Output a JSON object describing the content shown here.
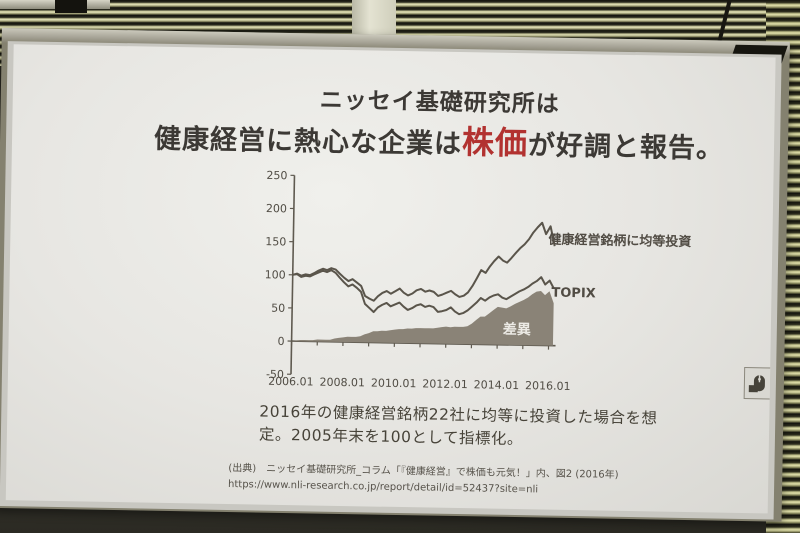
{
  "slide": {
    "title_line1": "ニッセイ基礎研究所は",
    "title_line2_prefix": "健康経営に熱心な企業は",
    "title_line2_highlight": "株価",
    "title_line2_suffix": "が好調と報告。",
    "highlight_color": "#b23230",
    "caption": "2016年の健康経営銘柄22社に均等に投資した場合を想定。2005年末を100として指標化。",
    "source_line1": "(出典)　ニッセイ基礎研究所_コラム「『健康経営』で株価も元気！」内、図2 (2016年)",
    "source_line2": "https://www.nli-research.co.jp/report/detail/id=52437?site=nli"
  },
  "chart_data": {
    "type": "line",
    "title": "",
    "xlabel": "",
    "ylabel": "",
    "ylim": [
      -50,
      250
    ],
    "yticks": [
      250,
      200,
      150,
      100,
      50,
      0,
      -50
    ],
    "xtick_labels": [
      "2006.01",
      "2008.01",
      "2010.01",
      "2012.01",
      "2014.01",
      "2016.01"
    ],
    "xtick_years": [
      2006,
      2008,
      2010,
      2012,
      2014,
      2016
    ],
    "minor_xtick_years": [
      2006,
      2007,
      2008,
      2009,
      2010,
      2011,
      2012,
      2013,
      2014,
      2015,
      2016
    ],
    "grid": false,
    "legend_position": "right-of-line-ends",
    "x": [
      2006.0,
      2006.17,
      2006.33,
      2006.5,
      2006.67,
      2006.83,
      2007.0,
      2007.17,
      2007.33,
      2007.5,
      2007.67,
      2007.83,
      2008.0,
      2008.17,
      2008.33,
      2008.5,
      2008.67,
      2008.83,
      2009.0,
      2009.17,
      2009.33,
      2009.5,
      2009.67,
      2009.83,
      2010.0,
      2010.17,
      2010.33,
      2010.5,
      2010.67,
      2010.83,
      2011.0,
      2011.17,
      2011.33,
      2011.5,
      2011.67,
      2011.83,
      2012.0,
      2012.17,
      2012.33,
      2012.5,
      2012.67,
      2012.83,
      2013.0,
      2013.17,
      2013.33,
      2013.5,
      2013.67,
      2013.83,
      2014.0,
      2014.17,
      2014.33,
      2014.5,
      2014.67,
      2014.83,
      2015.0,
      2015.17,
      2015.33,
      2015.5,
      2015.67,
      2015.83,
      2016.0,
      2016.17
    ],
    "series": [
      {
        "name": "健康経営銘柄に均等投資",
        "type": "line",
        "values": [
          100,
          102,
          99,
          101,
          100,
          103,
          107,
          110,
          108,
          111,
          109,
          103,
          97,
          92,
          95,
          90,
          85,
          70,
          66,
          63,
          70,
          75,
          78,
          74,
          78,
          82,
          76,
          72,
          75,
          80,
          82,
          78,
          80,
          78,
          72,
          74,
          77,
          80,
          75,
          71,
          73,
          78,
          88,
          100,
          112,
          108,
          118,
          126,
          133,
          127,
          124,
          131,
          139,
          146,
          152,
          160,
          170,
          178,
          185,
          168,
          180,
          150
        ]
      },
      {
        "name": "TOPIX",
        "type": "line",
        "values": [
          100,
          101,
          97,
          99,
          98,
          101,
          104,
          107,
          105,
          108,
          104,
          97,
          90,
          84,
          87,
          82,
          76,
          58,
          52,
          46,
          53,
          57,
          60,
          55,
          58,
          61,
          55,
          50,
          53,
          57,
          59,
          55,
          57,
          55,
          48,
          49,
          51,
          55,
          49,
          45,
          47,
          51,
          57,
          63,
          70,
          66,
          71,
          74,
          76,
          71,
          69,
          73,
          77,
          81,
          84,
          88,
          93,
          97,
          103,
          92,
          98,
          86
        ]
      },
      {
        "name": "差異",
        "type": "area",
        "values": [
          0,
          1,
          2,
          2,
          2,
          2,
          3,
          3,
          3,
          3,
          5,
          6,
          7,
          8,
          8,
          8,
          9,
          12,
          14,
          17,
          17,
          18,
          18,
          19,
          20,
          21,
          21,
          22,
          22,
          23,
          23,
          23,
          23,
          23,
          24,
          25,
          26,
          25,
          26,
          26,
          26,
          27,
          31,
          37,
          42,
          42,
          47,
          52,
          57,
          56,
          55,
          58,
          62,
          65,
          68,
          72,
          77,
          81,
          82,
          76,
          82,
          64
        ]
      }
    ],
    "colors": {
      "line_ink": "#5a554b",
      "area_fill": "#8a8377",
      "axis_ink": "#5f5a50",
      "tick_label": "#514d45",
      "area_label": "#eceae5"
    }
  },
  "icons": {
    "mouse_indicator": "presentation mouse-mode indicator"
  }
}
